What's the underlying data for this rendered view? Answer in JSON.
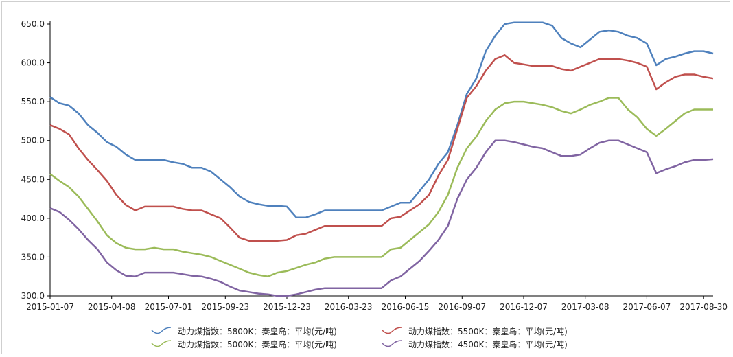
{
  "chart_data": {
    "type": "line",
    "title": "",
    "xlabel": "",
    "ylabel": "",
    "ylim": [
      300,
      650
    ],
    "y_ticks": [
      "300.0",
      "350.0",
      "400.0",
      "450.0",
      "500.0",
      "550.0",
      "600.0",
      "650.0"
    ],
    "x_ticks": [
      "2015-01-07",
      "2015-04-08",
      "2015-07-01",
      "2015-09-23",
      "2015-12-23",
      "2016-03-23",
      "2016-06-15",
      "2016-09-07",
      "2016-12-07",
      "2017-03-08",
      "2017-06-07",
      "2017-08-30"
    ],
    "grid": false,
    "legend_position": "bottom",
    "x": [
      "2015-01-07",
      "2015-01-21",
      "2015-02-04",
      "2015-02-18",
      "2015-03-04",
      "2015-03-18",
      "2015-04-01",
      "2015-04-15",
      "2015-04-29",
      "2015-05-13",
      "2015-05-27",
      "2015-06-10",
      "2015-06-24",
      "2015-07-08",
      "2015-07-22",
      "2015-08-05",
      "2015-08-19",
      "2015-09-02",
      "2015-09-16",
      "2015-09-30",
      "2015-10-14",
      "2015-10-28",
      "2015-11-11",
      "2015-11-25",
      "2015-12-09",
      "2015-12-23",
      "2016-01-06",
      "2016-01-20",
      "2016-02-03",
      "2016-02-17",
      "2016-03-02",
      "2016-03-16",
      "2016-03-30",
      "2016-04-13",
      "2016-04-27",
      "2016-05-11",
      "2016-05-25",
      "2016-06-08",
      "2016-06-22",
      "2016-07-06",
      "2016-07-20",
      "2016-08-03",
      "2016-08-17",
      "2016-08-31",
      "2016-09-14",
      "2016-09-28",
      "2016-10-12",
      "2016-10-26",
      "2016-11-09",
      "2016-11-23",
      "2016-12-07",
      "2016-12-21",
      "2017-01-04",
      "2017-01-18",
      "2017-02-01",
      "2017-02-15",
      "2017-03-01",
      "2017-03-15",
      "2017-03-29",
      "2017-04-12",
      "2017-04-26",
      "2017-05-10",
      "2017-05-24",
      "2017-06-07",
      "2017-06-21",
      "2017-07-05",
      "2017-07-19",
      "2017-08-02",
      "2017-08-16",
      "2017-08-30",
      "2017-09-13"
    ],
    "series": [
      {
        "name": "动力煤指数：5800K：秦皇岛：平均(元/吨)",
        "color": "#4f81bd",
        "values": [
          556,
          548,
          545,
          535,
          520,
          510,
          498,
          492,
          482,
          475,
          475,
          475,
          475,
          472,
          470,
          465,
          465,
          460,
          450,
          440,
          428,
          421,
          418,
          416,
          416,
          415,
          401,
          401,
          405,
          410,
          410,
          410,
          410,
          410,
          410,
          410,
          415,
          420,
          420,
          435,
          450,
          470,
          485,
          520,
          560,
          580,
          615,
          635,
          650,
          652,
          652,
          652,
          652,
          648,
          632,
          625,
          620,
          630,
          640,
          642,
          640,
          635,
          632,
          625,
          597,
          605,
          608,
          612,
          615,
          615,
          612
        ]
      },
      {
        "name": "动力煤指数：5500K：秦皇岛：平均(元/吨)",
        "color": "#c0504d",
        "values": [
          520,
          515,
          508,
          490,
          475,
          462,
          448,
          430,
          417,
          410,
          415,
          415,
          415,
          415,
          412,
          410,
          410,
          405,
          400,
          388,
          375,
          371,
          371,
          371,
          371,
          372,
          378,
          380,
          385,
          390,
          390,
          390,
          390,
          390,
          390,
          390,
          400,
          402,
          410,
          418,
          430,
          455,
          475,
          515,
          555,
          570,
          590,
          605,
          610,
          600,
          598,
          596,
          596,
          596,
          592,
          590,
          595,
          600,
          605,
          605,
          605,
          603,
          600,
          595,
          566,
          575,
          582,
          585,
          585,
          582,
          580
        ]
      },
      {
        "name": "动力煤指数：5000K：秦皇岛：平均(元/吨)",
        "color": "#9bbb59",
        "values": [
          457,
          448,
          440,
          428,
          412,
          396,
          378,
          368,
          362,
          360,
          360,
          362,
          360,
          360,
          357,
          355,
          353,
          350,
          345,
          340,
          335,
          330,
          327,
          325,
          330,
          332,
          336,
          340,
          343,
          348,
          350,
          350,
          350,
          350,
          350,
          350,
          360,
          362,
          372,
          382,
          392,
          408,
          430,
          465,
          490,
          505,
          525,
          540,
          548,
          550,
          550,
          548,
          546,
          543,
          538,
          535,
          540,
          546,
          550,
          555,
          555,
          540,
          530,
          515,
          506,
          515,
          525,
          535,
          540,
          540,
          540
        ]
      },
      {
        "name": "动力煤指数：4500K：秦皇岛：平均(元/吨)",
        "color": "#8064a2",
        "values": [
          413,
          408,
          398,
          386,
          372,
          360,
          343,
          333,
          326,
          325,
          330,
          330,
          330,
          330,
          328,
          326,
          325,
          322,
          318,
          312,
          307,
          305,
          303,
          302,
          300,
          300,
          302,
          305,
          308,
          310,
          310,
          310,
          310,
          310,
          310,
          310,
          320,
          325,
          335,
          345,
          358,
          372,
          390,
          425,
          450,
          465,
          485,
          500,
          500,
          498,
          495,
          492,
          490,
          485,
          480,
          480,
          482,
          490,
          497,
          500,
          500,
          495,
          490,
          485,
          458,
          463,
          467,
          472,
          475,
          475,
          476
        ]
      }
    ]
  }
}
